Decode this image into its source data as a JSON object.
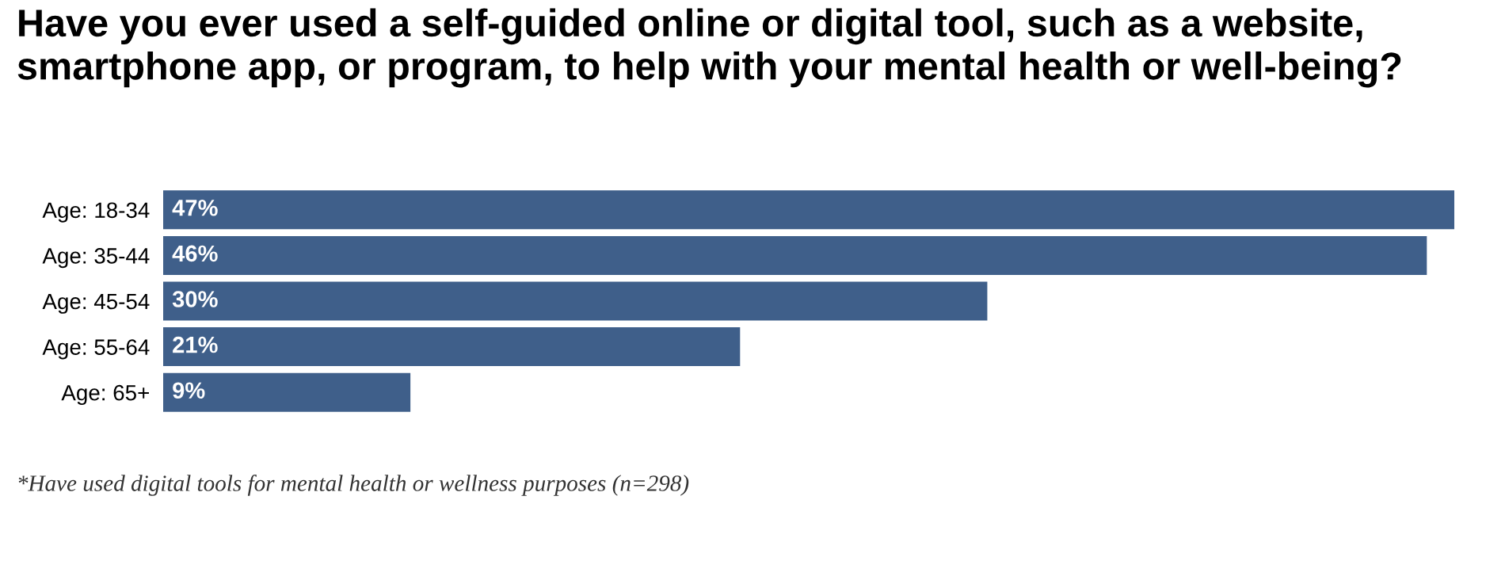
{
  "chart_data": {
    "type": "bar",
    "orientation": "horizontal",
    "title": "Have you ever used a self-guided online or digital tool, such as a website, smartphone app, or program, to help with your mental health or well-being?",
    "categories": [
      "Age: 18-34",
      "Age: 35-44",
      "Age: 45-54",
      "Age: 55-64",
      "Age: 65+"
    ],
    "values": [
      47,
      46,
      30,
      21,
      9
    ],
    "value_labels": [
      "47%",
      "46%",
      "30%",
      "21%",
      "9%"
    ],
    "color": "#3f5f8a",
    "annotations": [
      "*Have used digital tools for mental health or wellness purposes (n=298)"
    ]
  }
}
